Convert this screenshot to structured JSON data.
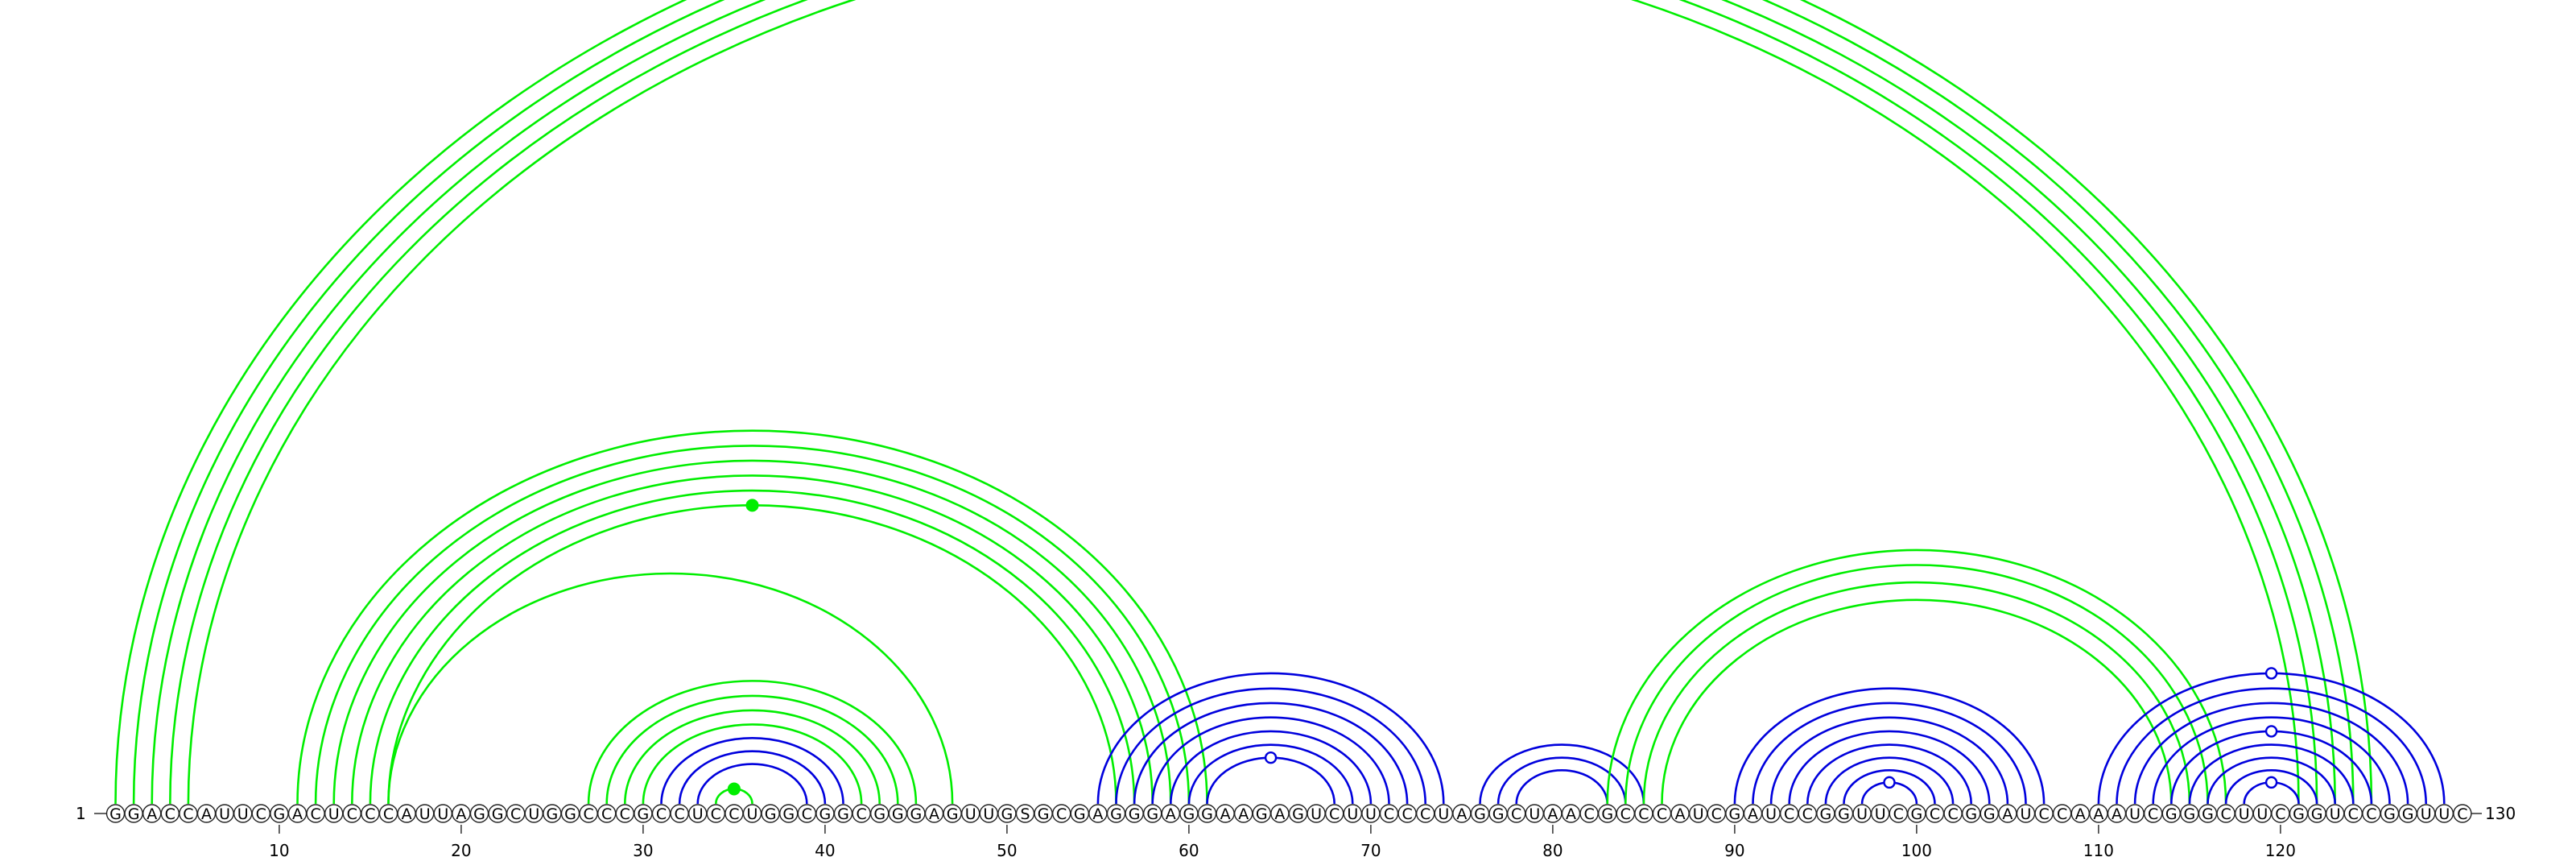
{
  "sequence": "GGACCAUUCGACUCCCAUUAGGCUGGCCCGCCUCCUGGCGGCGGGAGUUGSGCGAGGGAGGAAGAGUCUUCCCUAGGCUAACGCCCAUCGAUCCGGUUCGCCGGAUCCAAAUCGGGCUUCGGUCCGGUUC",
  "start_label": "1",
  "end_label": "130",
  "ticks": [
    "10",
    "20",
    "30",
    "40",
    "50",
    "60",
    "70",
    "80",
    "90",
    "100",
    "110",
    "120"
  ],
  "colors": {
    "green": "#00ee00",
    "blue": "#0000dd"
  },
  "helices": [
    {
      "color": "green",
      "pairs": [
        [
          1,
          125
        ],
        [
          2,
          124
        ],
        [
          3,
          123
        ],
        [
          4,
          122
        ],
        [
          5,
          121
        ]
      ]
    },
    {
      "color": "green",
      "pairs": [
        [
          11,
          61
        ],
        [
          12,
          60
        ],
        [
          13,
          59
        ],
        [
          14,
          58
        ],
        [
          15,
          57
        ],
        [
          16,
          56
        ]
      ]
    },
    {
      "color": "green",
      "pairs": [
        [
          16,
          47
        ]
      ]
    },
    {
      "color": "green",
      "pairs": [
        [
          27,
          45
        ],
        [
          28,
          44
        ],
        [
          29,
          43
        ],
        [
          30,
          42
        ]
      ]
    },
    {
      "color": "green",
      "pairs": [
        [
          34,
          36
        ]
      ]
    },
    {
      "color": "blue",
      "pairs": [
        [
          31,
          41
        ],
        [
          32,
          40
        ],
        [
          33,
          39
        ]
      ]
    },
    {
      "color": "blue",
      "pairs": [
        [
          55,
          74
        ],
        [
          56,
          73
        ],
        [
          57,
          72
        ],
        [
          58,
          71
        ],
        [
          59,
          70
        ],
        [
          60,
          69
        ],
        [
          61,
          68
        ]
      ]
    },
    {
      "color": "blue",
      "pairs": [
        [
          76,
          85
        ],
        [
          77,
          84
        ],
        [
          78,
          83
        ]
      ]
    },
    {
      "color": "green",
      "pairs": [
        [
          83,
          117
        ],
        [
          84,
          116
        ],
        [
          85,
          115
        ],
        [
          86,
          114
        ]
      ]
    },
    {
      "color": "blue",
      "pairs": [
        [
          90,
          107
        ],
        [
          91,
          106
        ],
        [
          92,
          105
        ],
        [
          93,
          104
        ],
        [
          94,
          103
        ],
        [
          95,
          102
        ],
        [
          96,
          101
        ],
        [
          97,
          100
        ]
      ]
    },
    {
      "color": "blue",
      "pairs": [
        [
          110,
          129
        ],
        [
          111,
          128
        ],
        [
          112,
          127
        ],
        [
          113,
          126
        ],
        [
          114,
          125
        ],
        [
          115,
          124
        ],
        [
          116,
          123
        ],
        [
          117,
          122
        ],
        [
          118,
          121
        ]
      ]
    }
  ],
  "markers": [
    {
      "type": "filled",
      "color": "green",
      "between": [
        16,
        56
      ]
    },
    {
      "type": "filled",
      "color": "green",
      "between": [
        34,
        36
      ]
    },
    {
      "type": "open",
      "color": "blue",
      "between": [
        61,
        68
      ]
    },
    {
      "type": "open",
      "color": "blue",
      "between": [
        97,
        100
      ]
    },
    {
      "type": "open",
      "color": "blue",
      "between": [
        110,
        129
      ]
    },
    {
      "type": "open",
      "color": "blue",
      "between": [
        114,
        125
      ]
    },
    {
      "type": "open",
      "color": "blue",
      "between": [
        118,
        121
      ]
    }
  ]
}
